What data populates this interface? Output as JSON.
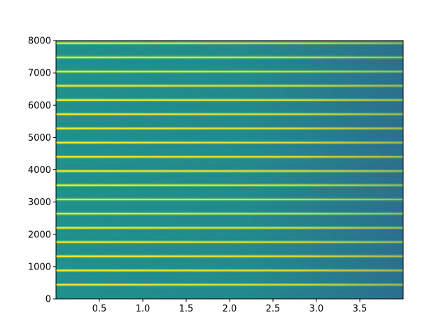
{
  "chart_data": {
    "type": "heatmap",
    "title": "",
    "xlabel": "",
    "ylabel": "",
    "xlim": [
      0.0,
      4.0
    ],
    "ylim": [
      0,
      8000
    ],
    "x_ticks": [
      0.5,
      1.0,
      1.5,
      2.0,
      2.5,
      3.0,
      3.5
    ],
    "x_tick_labels": [
      "0.5",
      "1.0",
      "1.5",
      "2.0",
      "2.5",
      "3.0",
      "3.5"
    ],
    "y_ticks": [
      0,
      1000,
      2000,
      3000,
      4000,
      5000,
      6000,
      7000,
      8000
    ],
    "y_tick_labels": [
      "0",
      "1000",
      "2000",
      "3000",
      "4000",
      "5000",
      "6000",
      "7000",
      "8000"
    ],
    "harmonic_frequencies": [
      440,
      880,
      1320,
      1760,
      2200,
      2640,
      3080,
      3520,
      3960,
      4400,
      4840,
      5280,
      5720,
      6160,
      6600,
      7040,
      7480,
      7920
    ],
    "colormap": "viridis",
    "grid": false,
    "legend": "none",
    "colors": {
      "background_low": "#2c6f8e",
      "background_mid": "#21918c",
      "harmonic_peak": "#fde725",
      "harmonic_edge": "#5ec962"
    }
  }
}
